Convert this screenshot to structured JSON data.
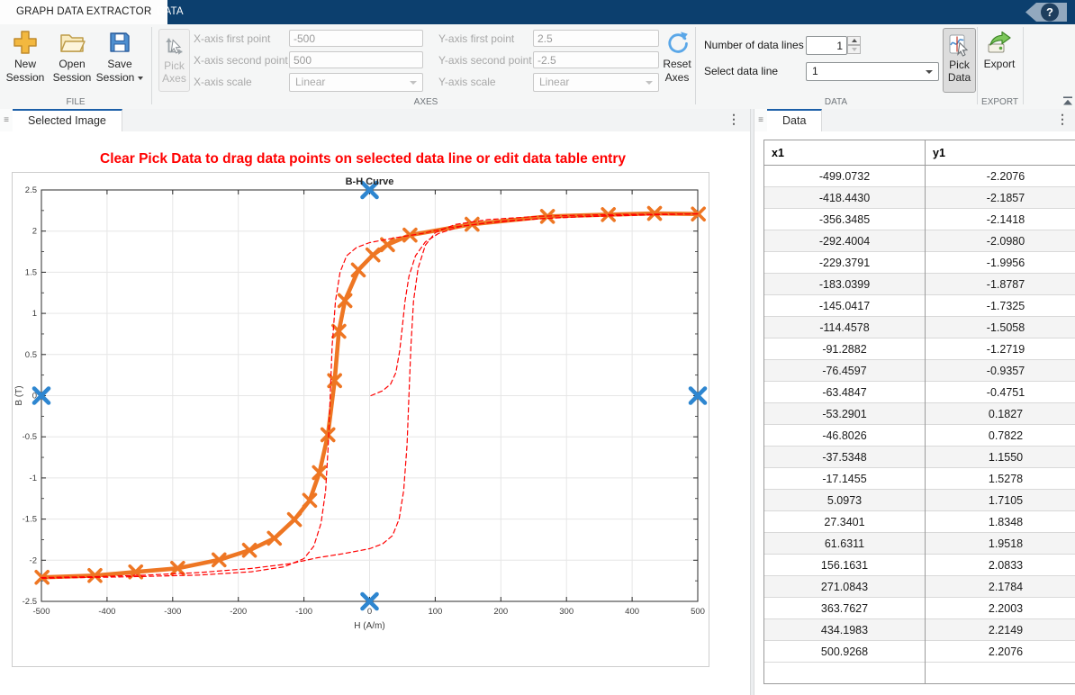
{
  "ribbon": {
    "tabs": {
      "graph_data_extractor": "GRAPH DATA EXTRACTOR",
      "data": "DATA"
    },
    "help_glyph": "?",
    "file_section": {
      "new": {
        "l1": "New",
        "l2": "Session"
      },
      "open": {
        "l1": "Open",
        "l2": "Session"
      },
      "save": {
        "l1": "Save",
        "l2": "Session"
      },
      "label": "FILE"
    },
    "axes_section": {
      "pick_axes": {
        "l1": "Pick",
        "l2": "Axes"
      },
      "fields": {
        "x_first": {
          "label": "X-axis first point",
          "value": "-500"
        },
        "x_second": {
          "label": "X-axis second point",
          "value": "500"
        },
        "x_scale": {
          "label": "X-axis scale",
          "value": "Linear"
        },
        "y_first": {
          "label": "Y-axis first point",
          "value": "2.5"
        },
        "y_second": {
          "label": "Y-axis second point",
          "value": "-2.5"
        },
        "y_scale": {
          "label": "Y-axis scale",
          "value": "Linear"
        }
      },
      "reset_axes": {
        "l1": "Reset",
        "l2": "Axes"
      },
      "label": "AXES"
    },
    "data_section": {
      "num_lines": {
        "label": "Number of data lines",
        "value": "1"
      },
      "select_line": {
        "label": "Select data line",
        "value": "1"
      },
      "pick_data": {
        "l1": "Pick",
        "l2": "Data"
      },
      "label": "DATA"
    },
    "export_section": {
      "export_label": "Export",
      "label": "EXPORT"
    }
  },
  "panels": {
    "selected_image_tab": "Selected Image",
    "data_tab": "Data",
    "warning": "Clear Pick Data to drag data points on selected data line or edit data table entry"
  },
  "table": {
    "headers": [
      "x1",
      "y1"
    ],
    "rows": [
      [
        "-499.0732",
        "-2.2076"
      ],
      [
        "-418.4430",
        "-2.1857"
      ],
      [
        "-356.3485",
        "-2.1418"
      ],
      [
        "-292.4004",
        "-2.0980"
      ],
      [
        "-229.3791",
        "-1.9956"
      ],
      [
        "-183.0399",
        "-1.8787"
      ],
      [
        "-145.0417",
        "-1.7325"
      ],
      [
        "-114.4578",
        "-1.5058"
      ],
      [
        "-91.2882",
        "-1.2719"
      ],
      [
        "-76.4597",
        "-0.9357"
      ],
      [
        "-63.4847",
        "-0.4751"
      ],
      [
        "-53.2901",
        "0.1827"
      ],
      [
        "-46.8026",
        "0.7822"
      ],
      [
        "-37.5348",
        "1.1550"
      ],
      [
        "-17.1455",
        "1.5278"
      ],
      [
        "5.0973",
        "1.7105"
      ],
      [
        "27.3401",
        "1.8348"
      ],
      [
        "61.6311",
        "1.9518"
      ],
      [
        "156.1631",
        "2.0833"
      ],
      [
        "271.0843",
        "2.1784"
      ],
      [
        "363.7627",
        "2.2003"
      ],
      [
        "434.1983",
        "2.2149"
      ],
      [
        "500.9268",
        "2.2076"
      ]
    ],
    "trailing_empty_row": true
  },
  "chart_data": {
    "type": "line",
    "title": "B-H Curve",
    "xlabel": "H (A/m)",
    "ylabel": "B (T)",
    "xlim": [
      -500,
      500
    ],
    "ylim": [
      -2.5,
      2.5
    ],
    "xticks": [
      -500,
      -400,
      -300,
      -200,
      -100,
      0,
      100,
      200,
      300,
      400,
      500
    ],
    "yticks": [
      -2.5,
      -2,
      -1.5,
      -1,
      -0.5,
      0,
      0.5,
      1,
      1.5,
      2,
      2.5
    ],
    "grid": true,
    "legend": "none",
    "series": [
      {
        "name": "picked data line 1",
        "color": "#EE7623",
        "style": "solid",
        "width": 4.6,
        "marker": "x",
        "marker_size": 6.5,
        "marker_width": 3.6,
        "points": [
          [
            -499.0732,
            -2.2076
          ],
          [
            -418.443,
            -2.1857
          ],
          [
            -356.3485,
            -2.1418
          ],
          [
            -292.4004,
            -2.098
          ],
          [
            -229.3791,
            -1.9956
          ],
          [
            -183.0399,
            -1.8787
          ],
          [
            -145.0417,
            -1.7325
          ],
          [
            -114.4578,
            -1.5058
          ],
          [
            -91.2882,
            -1.2719
          ],
          [
            -76.4597,
            -0.9357
          ],
          [
            -63.4847,
            -0.4751
          ],
          [
            -53.2901,
            0.1827
          ],
          [
            -46.8026,
            0.7822
          ],
          [
            -37.5348,
            1.155
          ],
          [
            -17.1455,
            1.5278
          ],
          [
            5.0973,
            1.7105
          ],
          [
            27.3401,
            1.8348
          ],
          [
            61.6311,
            1.9518
          ],
          [
            156.1631,
            2.0833
          ],
          [
            271.0843,
            2.1784
          ],
          [
            363.7627,
            2.2003
          ],
          [
            434.1983,
            2.2149
          ],
          [
            500.9268,
            2.2076
          ]
        ]
      },
      {
        "name": "source image hysteresis ascending branch (dashed red, estimated)",
        "color": "#FF0000",
        "style": "dashed",
        "width": 1.2,
        "marker": "none",
        "points": [
          [
            -500,
            -2.21
          ],
          [
            -420,
            -2.2
          ],
          [
            -340,
            -2.18
          ],
          [
            -260,
            -2.15
          ],
          [
            -180,
            -2.1
          ],
          [
            -120,
            -2.04
          ],
          [
            -80,
            -1.97
          ],
          [
            -40,
            -1.92
          ],
          [
            0,
            -1.86
          ],
          [
            20,
            -1.8
          ],
          [
            35,
            -1.7
          ],
          [
            45,
            -1.5
          ],
          [
            52,
            -1.15
          ],
          [
            57,
            -0.6
          ],
          [
            60,
            0.0
          ],
          [
            63,
            0.6
          ],
          [
            67,
            1.15
          ],
          [
            74,
            1.55
          ],
          [
            85,
            1.83
          ],
          [
            100,
            1.98
          ],
          [
            130,
            2.08
          ],
          [
            180,
            2.14
          ],
          [
            260,
            2.18
          ],
          [
            360,
            2.2
          ],
          [
            500,
            2.21
          ]
        ]
      },
      {
        "name": "source image hysteresis descending branch (dashed red, estimated)",
        "color": "#FF0000",
        "style": "dashed",
        "width": 1.2,
        "marker": "none",
        "points": [
          [
            500,
            2.21
          ],
          [
            420,
            2.2
          ],
          [
            340,
            2.18
          ],
          [
            260,
            2.15
          ],
          [
            180,
            2.1
          ],
          [
            120,
            2.04
          ],
          [
            80,
            1.97
          ],
          [
            40,
            1.92
          ],
          [
            0,
            1.86
          ],
          [
            -20,
            1.8
          ],
          [
            -35,
            1.7
          ],
          [
            -45,
            1.5
          ],
          [
            -52,
            1.15
          ],
          [
            -57,
            0.6
          ],
          [
            -60,
            0.0
          ],
          [
            -63,
            -0.6
          ],
          [
            -67,
            -1.15
          ],
          [
            -74,
            -1.55
          ],
          [
            -85,
            -1.83
          ],
          [
            -100,
            -1.98
          ],
          [
            -130,
            -2.08
          ],
          [
            -180,
            -2.14
          ],
          [
            -260,
            -2.18
          ],
          [
            -360,
            -2.2
          ],
          [
            -500,
            -2.22
          ]
        ]
      },
      {
        "name": "source image initial magnetization curve (dashed red, estimated)",
        "color": "#FF0000",
        "style": "dashed",
        "width": 1.2,
        "marker": "none",
        "points": [
          [
            2,
            0.0
          ],
          [
            20,
            0.06
          ],
          [
            32,
            0.14
          ],
          [
            40,
            0.28
          ],
          [
            46,
            0.55
          ],
          [
            50,
            0.85
          ],
          [
            54,
            1.15
          ],
          [
            60,
            1.45
          ],
          [
            70,
            1.7
          ],
          [
            85,
            1.87
          ],
          [
            105,
            1.97
          ],
          [
            140,
            2.06
          ],
          [
            200,
            2.12
          ],
          [
            300,
            2.17
          ],
          [
            400,
            2.19
          ],
          [
            500,
            2.21
          ]
        ]
      }
    ],
    "axes_pick_markers": {
      "color": "#2E86D0",
      "marker": "x",
      "marker_size": 8,
      "marker_width": 4.6,
      "points": [
        [
          -500,
          0
        ],
        [
          500,
          0
        ],
        [
          0,
          2.5
        ],
        [
          0,
          -2.5
        ]
      ]
    }
  }
}
